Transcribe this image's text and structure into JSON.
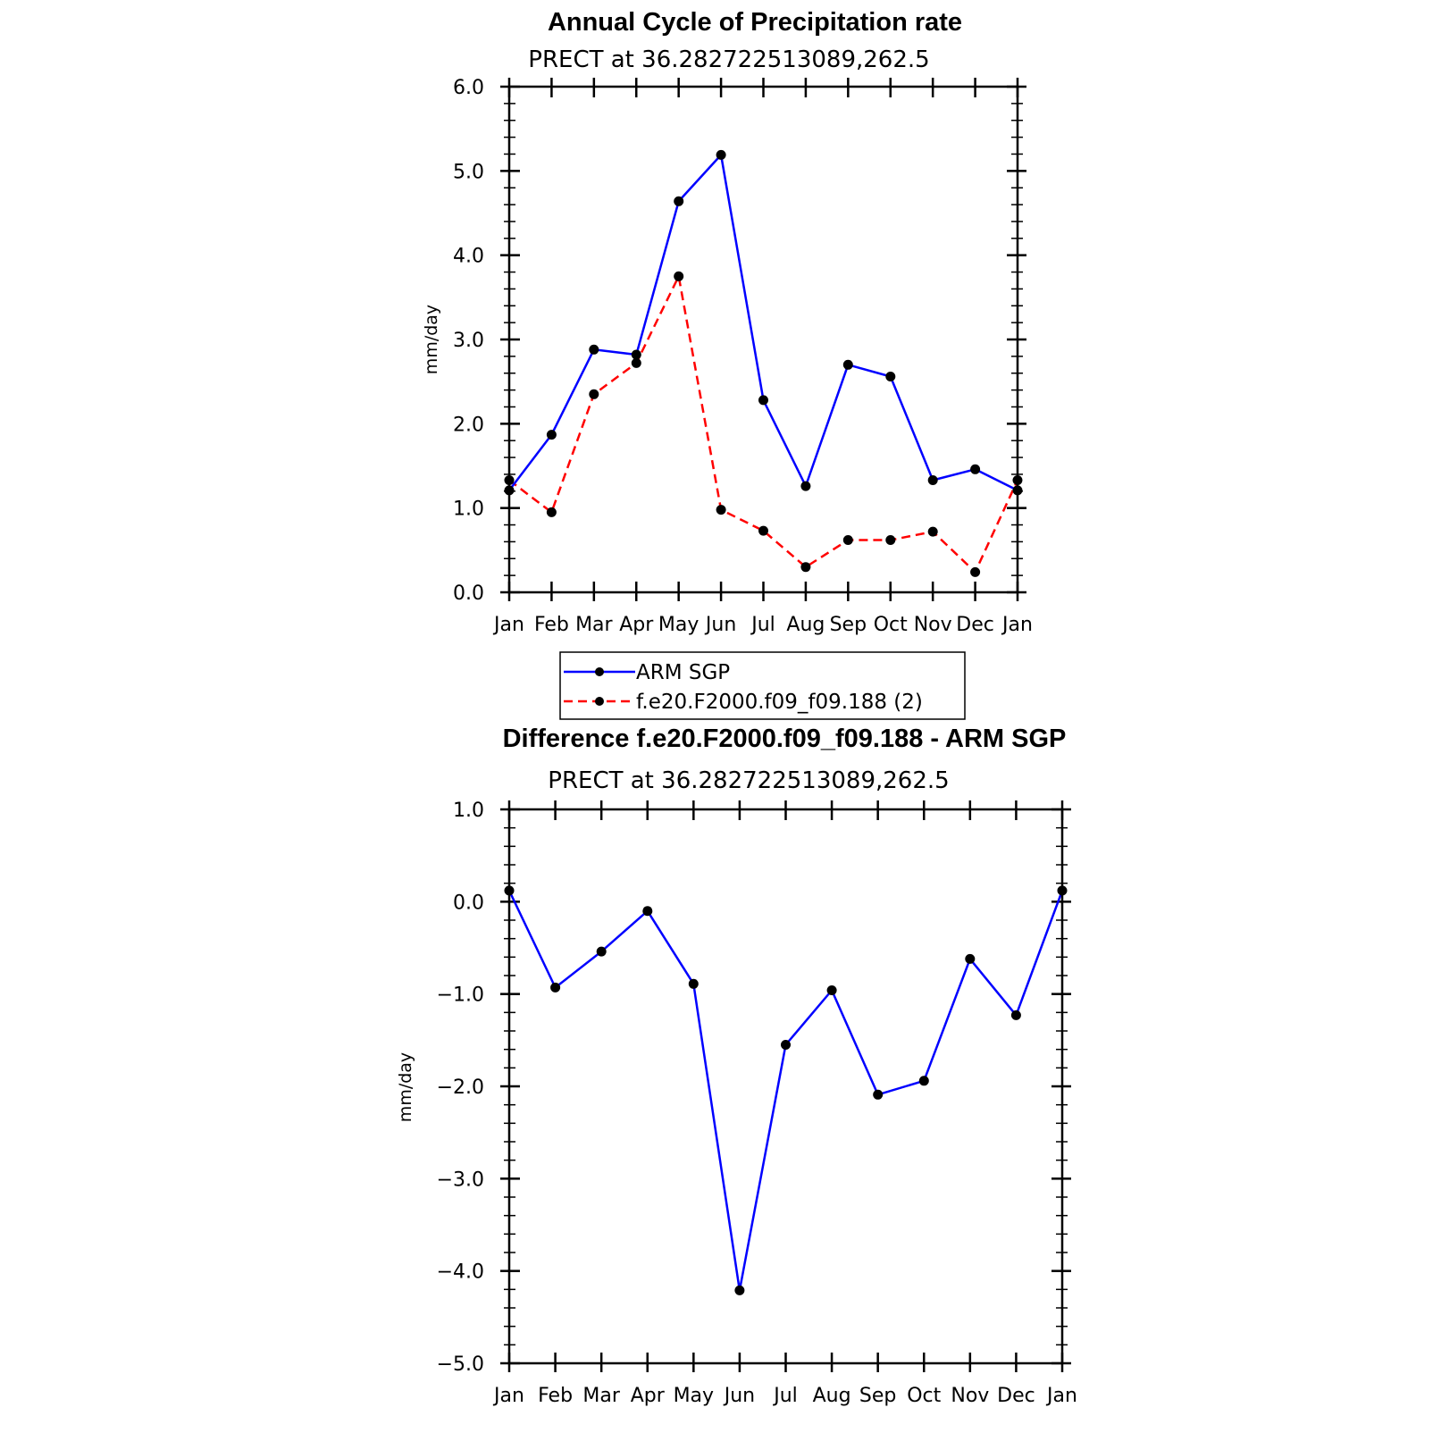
{
  "colors": {
    "series1": "#0000ff",
    "series2": "#ff0000",
    "marker": "#000000",
    "axis": "#000000"
  },
  "chart_data": [
    {
      "type": "line",
      "title": "Annual Cycle of Precipitation rate",
      "subtitle": "PRECT at 36.282722513089,262.5",
      "xlabel": "",
      "ylabel": "mm/day",
      "categories": [
        "Jan",
        "Feb",
        "Mar",
        "Apr",
        "May",
        "Jun",
        "Jul",
        "Aug",
        "Sep",
        "Oct",
        "Nov",
        "Dec",
        "Jan"
      ],
      "ylim": [
        0,
        6
      ],
      "yticks": [
        0,
        1,
        2,
        3,
        4,
        5,
        6
      ],
      "ytick_labels": [
        "0.0",
        "1.0",
        "2.0",
        "3.0",
        "4.0",
        "5.0",
        "6.0"
      ],
      "grid": false,
      "legend": "below",
      "series": [
        {
          "name": "ARM SGP",
          "style": "solid",
          "color": "#0000ff",
          "values": [
            1.21,
            1.87,
            2.88,
            2.82,
            4.64,
            5.19,
            2.28,
            1.26,
            2.7,
            2.56,
            1.33,
            1.46,
            1.21
          ]
        },
        {
          "name": "f.e20.F2000.f09_f09.188 (2)",
          "style": "dashed",
          "color": "#ff0000",
          "values": [
            1.33,
            0.95,
            2.35,
            2.72,
            3.75,
            0.98,
            0.73,
            0.3,
            0.62,
            0.62,
            0.72,
            0.24,
            1.33
          ]
        }
      ]
    },
    {
      "type": "line",
      "title": "Difference f.e20.F2000.f09_f09.188 - ARM SGP",
      "subtitle": "PRECT at 36.282722513089,262.5",
      "xlabel": "",
      "ylabel": "mm/day",
      "categories": [
        "Jan",
        "Feb",
        "Mar",
        "Apr",
        "May",
        "Jun",
        "Jul",
        "Aug",
        "Sep",
        "Oct",
        "Nov",
        "Dec",
        "Jan"
      ],
      "ylim": [
        -5,
        1
      ],
      "yticks": [
        -5,
        -4,
        -3,
        -2,
        -1,
        0,
        1
      ],
      "ytick_labels": [
        "−5.0",
        "−4.0",
        "−3.0",
        "−2.0",
        "−1.0",
        "0.0",
        "1.0"
      ],
      "grid": false,
      "series": [
        {
          "style": "solid",
          "color": "#0000ff",
          "values": [
            0.12,
            -0.93,
            -0.54,
            -0.1,
            -0.89,
            -4.21,
            -1.55,
            -0.96,
            -2.09,
            -1.94,
            -0.62,
            -1.23,
            0.12
          ]
        }
      ]
    }
  ]
}
